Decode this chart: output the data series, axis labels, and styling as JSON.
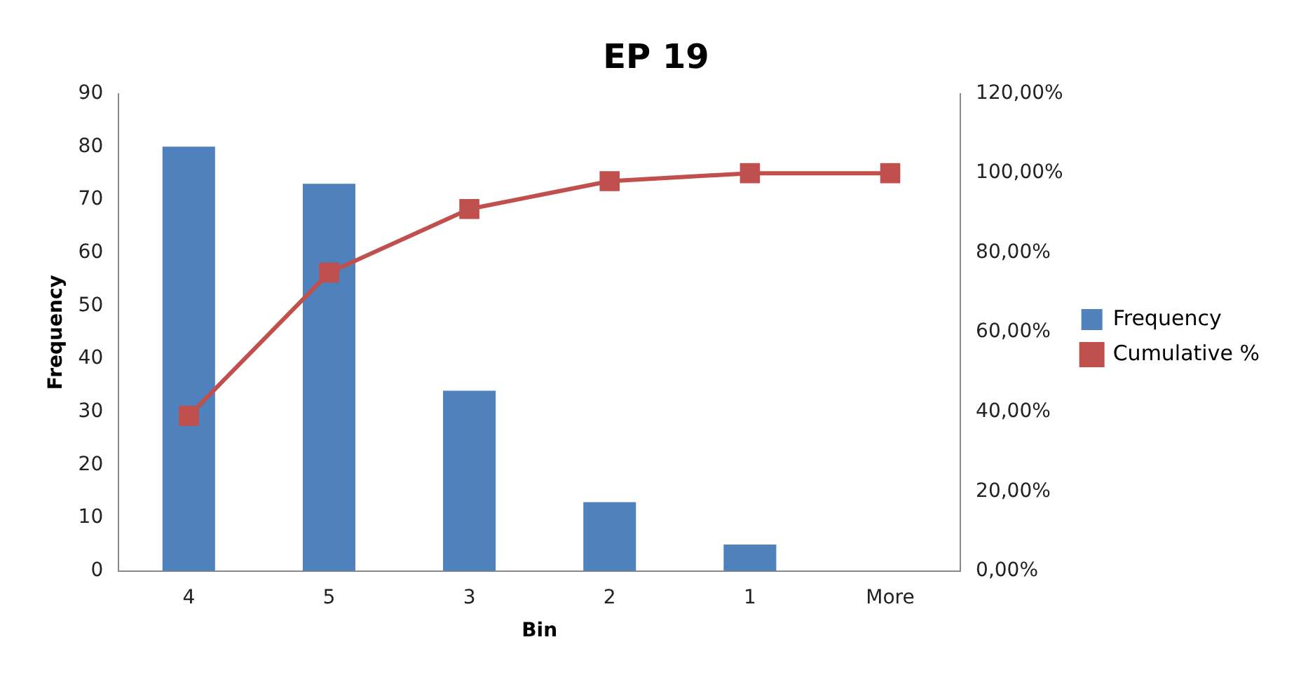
{
  "chart_data": {
    "type": "bar",
    "title": "EP 19",
    "xlabel": "Bin",
    "ylabel": "Frequency",
    "categories": [
      "4",
      "5",
      "3",
      "2",
      "1",
      "More"
    ],
    "series": [
      {
        "name": "Frequency",
        "color": "#4f81bd",
        "values": [
          80,
          73,
          34,
          13,
          5,
          0
        ]
      },
      {
        "name": "Cumulative %",
        "type": "line",
        "axis": "y2",
        "color": "#c0504d",
        "values": [
          39,
          75,
          91,
          98,
          100,
          100
        ]
      }
    ],
    "ylim": [
      0,
      90
    ],
    "yticks": [
      0,
      10,
      20,
      30,
      40,
      50,
      60,
      70,
      80,
      90
    ],
    "y2lim": [
      0,
      120
    ],
    "y2ticks": [
      {
        "value": 0,
        "label": "0,00%"
      },
      {
        "value": 20,
        "label": "20,00%"
      },
      {
        "value": 40,
        "label": "40,00%"
      },
      {
        "value": 60,
        "label": "60,00%"
      },
      {
        "value": 80,
        "label": "80,00%"
      },
      {
        "value": 100,
        "label": "100,00%"
      },
      {
        "value": 120,
        "label": "120,00%"
      }
    ],
    "grid": false,
    "legend": "right",
    "marker": "square",
    "line_style": "solid"
  }
}
